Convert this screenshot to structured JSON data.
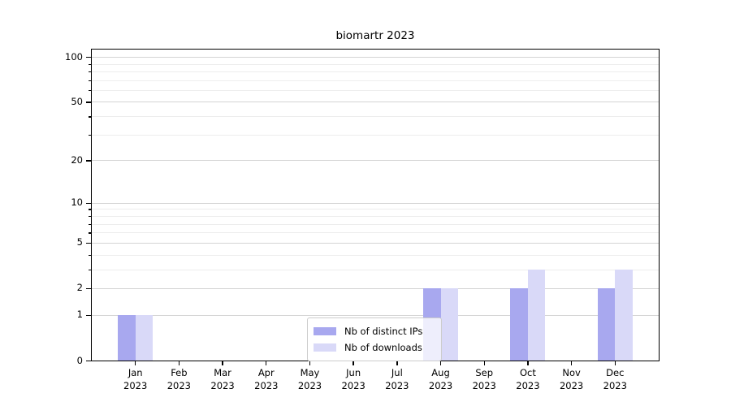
{
  "chart_data": {
    "type": "bar",
    "title": "biomartr 2023",
    "scale": "log1p",
    "months": [
      "Jan",
      "Feb",
      "Mar",
      "Apr",
      "May",
      "Jun",
      "Jul",
      "Aug",
      "Sep",
      "Oct",
      "Nov",
      "Dec"
    ],
    "year": "2023",
    "series": [
      {
        "name": "Nb of distinct IPs",
        "color": "#a8a8ef",
        "values": [
          1,
          0,
          0,
          0,
          0,
          0,
          0,
          2,
          0,
          2,
          0,
          2
        ]
      },
      {
        "name": "Nb of downloads",
        "color": "#d9d9f8",
        "values": [
          1,
          0,
          0,
          0,
          0,
          0,
          0,
          2,
          0,
          3,
          0,
          3
        ]
      }
    ],
    "yticks": [
      0,
      1,
      2,
      5,
      10,
      20,
      50,
      100
    ],
    "minor_yticks": [
      3,
      4,
      6,
      7,
      8,
      9,
      30,
      40,
      60,
      70,
      80,
      90
    ],
    "ylim": [
      0,
      112
    ],
    "xlabel": "",
    "ylabel": "",
    "grid": "horizontal",
    "legend_position": "lower-center-inside"
  }
}
